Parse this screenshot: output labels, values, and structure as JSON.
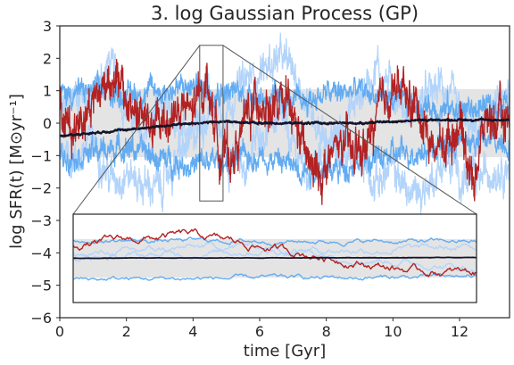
{
  "chart_data": {
    "type": "line",
    "title": "3. log Gaussian Process (GP)",
    "xlabel": "time [Gyr]",
    "ylabel": "log SFR(t) [M⊙yr⁻¹]",
    "xlim": [
      0,
      13.5
    ],
    "ylim": [
      -6,
      3
    ],
    "xticks": [
      0,
      2,
      4,
      6,
      8,
      10,
      12
    ],
    "yticks": [
      -6,
      -5,
      -4,
      -3,
      -2,
      -1,
      0,
      1,
      2,
      3
    ],
    "grid": false,
    "legend": "none",
    "band": {
      "lower": -1.05,
      "upper": 1.05,
      "color": "#e4e4e4"
    },
    "series": [
      {
        "role": "realization",
        "color": "#b3d4fa",
        "amplitude": 1.2,
        "anchors": [
          [
            0,
            0.2
          ],
          [
            0.5,
            1.0
          ],
          [
            1.0,
            0.8
          ],
          [
            1.5,
            1.9
          ],
          [
            2.0,
            0.5
          ],
          [
            2.5,
            -0.4
          ],
          [
            3.0,
            0.4
          ],
          [
            3.5,
            0.2
          ],
          [
            4.0,
            -0.2
          ],
          [
            4.5,
            0.8
          ],
          [
            5.0,
            -1.0
          ],
          [
            5.5,
            -1.5
          ],
          [
            6.0,
            -0.3
          ],
          [
            6.5,
            0.2
          ],
          [
            7.0,
            -0.8
          ],
          [
            7.5,
            -1.5
          ],
          [
            8.0,
            -1.0
          ],
          [
            8.5,
            0.0
          ],
          [
            9.0,
            0.8
          ],
          [
            9.5,
            1.8
          ],
          [
            10.0,
            1.0
          ],
          [
            10.5,
            0.3
          ],
          [
            11.0,
            0.8
          ],
          [
            11.5,
            1.2
          ],
          [
            12.0,
            0.2
          ],
          [
            12.5,
            -0.5
          ],
          [
            13.0,
            0.4
          ],
          [
            13.5,
            0.7
          ]
        ]
      },
      {
        "role": "realization",
        "color": "#b3d4fa",
        "amplitude": 1.2,
        "anchors": [
          [
            0,
            -0.5
          ],
          [
            0.5,
            -1.2
          ],
          [
            1.0,
            -0.4
          ],
          [
            1.5,
            -1.7
          ],
          [
            2.0,
            -1.5
          ],
          [
            2.5,
            -1.9
          ],
          [
            3.0,
            -2.0
          ],
          [
            3.5,
            -1.2
          ],
          [
            4.0,
            -0.5
          ],
          [
            4.5,
            0.5
          ],
          [
            5.0,
            0.6
          ],
          [
            5.5,
            1.2
          ],
          [
            6.0,
            1.6
          ],
          [
            6.5,
            2.0
          ],
          [
            7.0,
            1.7
          ],
          [
            7.5,
            0.5
          ],
          [
            8.0,
            -0.4
          ],
          [
            8.5,
            -1.2
          ],
          [
            9.0,
            -1.0
          ],
          [
            9.5,
            -1.8
          ],
          [
            10.0,
            -1.4
          ],
          [
            10.5,
            -2.2
          ],
          [
            11.0,
            -2.0
          ],
          [
            11.5,
            -1.2
          ],
          [
            12.0,
            -1.6
          ],
          [
            12.5,
            -1.8
          ],
          [
            13.0,
            -1.4
          ],
          [
            13.5,
            -1.2
          ]
        ]
      },
      {
        "role": "realization",
        "color": "#63acf2",
        "amplitude": 0.8,
        "anchors": [
          [
            0,
            0.9
          ],
          [
            1.0,
            1.0
          ],
          [
            2.0,
            0.9
          ],
          [
            3.0,
            1.0
          ],
          [
            4.0,
            1.1
          ],
          [
            5.0,
            1.0
          ],
          [
            6.0,
            0.8
          ],
          [
            7.0,
            0.6
          ],
          [
            8.0,
            0.9
          ],
          [
            9.0,
            1.0
          ],
          [
            10.0,
            0.7
          ],
          [
            11.0,
            0.5
          ],
          [
            12.0,
            0.4
          ],
          [
            13.0,
            0.5
          ],
          [
            13.5,
            0.6
          ]
        ]
      },
      {
        "role": "realization",
        "color": "#63acf2",
        "amplitude": 0.8,
        "anchors": [
          [
            0,
            -1.0
          ],
          [
            1.0,
            -0.9
          ],
          [
            2.0,
            -0.7
          ],
          [
            3.0,
            -1.1
          ],
          [
            4.0,
            -1.3
          ],
          [
            5.0,
            -1.1
          ],
          [
            6.0,
            -1.0
          ],
          [
            7.0,
            -1.3
          ],
          [
            8.0,
            -1.5
          ],
          [
            9.0,
            -1.2
          ],
          [
            10.0,
            -1.0
          ],
          [
            11.0,
            -0.8
          ],
          [
            12.0,
            -0.6
          ],
          [
            13.0,
            -0.5
          ],
          [
            13.5,
            -0.6
          ]
        ]
      },
      {
        "role": "realization",
        "color": "#b22222",
        "amplitude": 1.4,
        "anchors": [
          [
            0,
            0.3
          ],
          [
            0.4,
            -0.2
          ],
          [
            0.8,
            0.5
          ],
          [
            1.2,
            1.0
          ],
          [
            1.6,
            1.6
          ],
          [
            2.0,
            0.6
          ],
          [
            2.4,
            0.3
          ],
          [
            2.8,
            -0.2
          ],
          [
            3.2,
            0.1
          ],
          [
            3.6,
            0.4
          ],
          [
            4.0,
            0.3
          ],
          [
            4.4,
            1.4
          ],
          [
            4.8,
            -0.8
          ],
          [
            5.2,
            -1.1
          ],
          [
            5.6,
            0.2
          ],
          [
            6.0,
            0.8
          ],
          [
            6.4,
            0.3
          ],
          [
            6.8,
            0.6
          ],
          [
            7.2,
            -0.4
          ],
          [
            7.6,
            -1.6
          ],
          [
            8.0,
            -1.4
          ],
          [
            8.4,
            -0.6
          ],
          [
            8.8,
            -0.9
          ],
          [
            9.2,
            -0.8
          ],
          [
            9.6,
            0.4
          ],
          [
            10.0,
            1.2
          ],
          [
            10.4,
            0.8
          ],
          [
            10.8,
            0.4
          ],
          [
            11.2,
            -0.8
          ],
          [
            11.6,
            -0.6
          ],
          [
            12.0,
            0.1
          ],
          [
            12.4,
            -1.8
          ],
          [
            12.8,
            0.2
          ],
          [
            13.2,
            0.0
          ],
          [
            13.5,
            0.2
          ]
        ]
      },
      {
        "role": "mean",
        "color": "#14142a",
        "amplitude": 0.06,
        "anchors": [
          [
            0,
            -0.4
          ],
          [
            1.0,
            -0.3
          ],
          [
            2.0,
            -0.2
          ],
          [
            3.0,
            -0.1
          ],
          [
            4.0,
            0.0
          ],
          [
            5.0,
            0.05
          ],
          [
            6.0,
            0.0
          ],
          [
            7.0,
            0.0
          ],
          [
            8.0,
            0.0
          ],
          [
            9.0,
            0.0
          ],
          [
            10.0,
            0.05
          ],
          [
            11.0,
            0.1
          ],
          [
            12.0,
            0.1
          ],
          [
            13.0,
            0.1
          ],
          [
            13.5,
            0.1
          ]
        ]
      }
    ],
    "inset": {
      "zoom_xlim": [
        4.2,
        4.9
      ],
      "zoom_ylim": [
        -2.4,
        2.4
      ]
    }
  }
}
